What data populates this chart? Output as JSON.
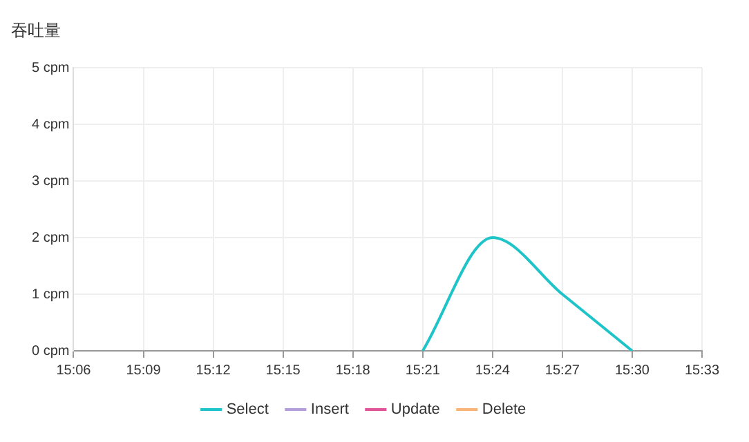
{
  "chart_data": {
    "type": "line",
    "title": "吞吐量",
    "x": [
      15.35,
      15.4,
      15.45,
      15.5
    ],
    "series": [
      {
        "name": "Select",
        "color": "#1fc4c8",
        "values": [
          0,
          2,
          1,
          0
        ]
      },
      {
        "name": "Insert",
        "color": "#b39ddb",
        "values": [
          null,
          null,
          null,
          null
        ]
      },
      {
        "name": "Update",
        "color": "#e0559a",
        "values": [
          null,
          null,
          null,
          null
        ]
      },
      {
        "name": "Delete",
        "color": "#f9b57a",
        "values": [
          null,
          null,
          null,
          null
        ]
      }
    ],
    "xlim": [
      15.1,
      15.55
    ],
    "xticks": [
      {
        "value": 15.1,
        "label": "15:06"
      },
      {
        "value": 15.15,
        "label": "15:09"
      },
      {
        "value": 15.2,
        "label": "15:12"
      },
      {
        "value": 15.25,
        "label": "15:15"
      },
      {
        "value": 15.3,
        "label": "15:18"
      },
      {
        "value": 15.35,
        "label": "15:21"
      },
      {
        "value": 15.4,
        "label": "15:24"
      },
      {
        "value": 15.45,
        "label": "15:27"
      },
      {
        "value": 15.5,
        "label": "15:30"
      },
      {
        "value": 15.55,
        "label": "15:33"
      }
    ],
    "ylim": [
      0,
      5
    ],
    "yticks": [
      {
        "value": 0,
        "label": "0 cpm"
      },
      {
        "value": 1,
        "label": "1 cpm"
      },
      {
        "value": 2,
        "label": "2 cpm"
      },
      {
        "value": 3,
        "label": "3 cpm"
      },
      {
        "value": 4,
        "label": "4 cpm"
      },
      {
        "value": 5,
        "label": "5 cpm"
      }
    ],
    "grid": true,
    "legend": "bottom",
    "marker": "none",
    "line_style": "solid"
  }
}
